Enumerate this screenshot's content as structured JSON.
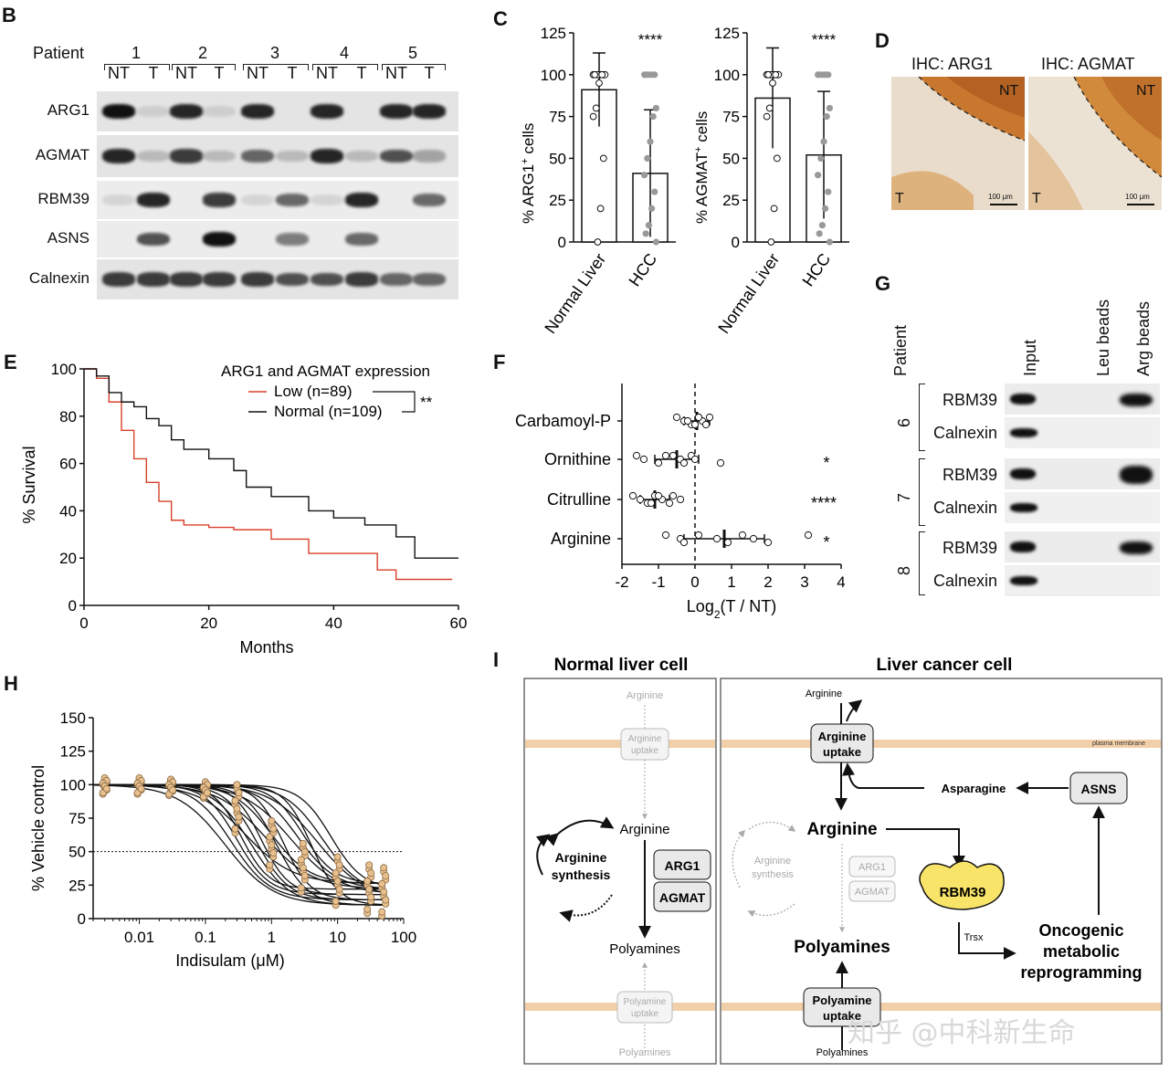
{
  "panels": {
    "B": "B",
    "C": "C",
    "D": "D",
    "E": "E",
    "F": "F",
    "G": "G",
    "H": "H",
    "I": "I"
  },
  "panel_b": {
    "patient_label": "Patient",
    "patients": [
      "1",
      "2",
      "3",
      "4",
      "5"
    ],
    "lanes": [
      "NT",
      "T",
      "NT",
      "T",
      "NT",
      "T",
      "NT",
      "T",
      "NT",
      "T"
    ],
    "rows": [
      "ARG1",
      "AGMAT",
      "RBM39",
      "ASNS",
      "Calnexin"
    ]
  },
  "panel_c": {
    "chart_data": [
      {
        "type": "bar",
        "ylabel": "% ARG1+ cells",
        "ylabel_main": "% ARG1",
        "ylabel_sup": "+",
        "ylabel_tail": " cells",
        "categories": [
          "Normal Liver",
          "HCC"
        ],
        "values": [
          91,
          41
        ],
        "errors": [
          22,
          38
        ],
        "ylim": [
          0,
          125
        ],
        "yticks": [
          "0",
          "25",
          "50",
          "75",
          "100",
          "125"
        ],
        "significance": "****"
      },
      {
        "type": "bar",
        "ylabel": "% AGMAT+ cells",
        "ylabel_main": "% AGMAT",
        "ylabel_sup": "+",
        "ylabel_tail": " cells",
        "categories": [
          "Normal Liver",
          "HCC"
        ],
        "values": [
          86,
          52
        ],
        "errors": [
          30,
          38
        ],
        "ylim": [
          0,
          125
        ],
        "yticks": [
          "0",
          "25",
          "50",
          "75",
          "100",
          "125"
        ],
        "significance": "****"
      }
    ]
  },
  "panel_d": {
    "titles": [
      "IHC: ARG1",
      "IHC: AGMAT"
    ],
    "nt": "NT",
    "t": "T",
    "scale": "100 μm"
  },
  "panel_e": {
    "chart_data": {
      "type": "line",
      "legend_title": "ARG1 and AGMAT expression",
      "series": [
        {
          "name": "Low (n=89)",
          "color": "#d9412b",
          "x": [
            0,
            2,
            4,
            6,
            8,
            10,
            12,
            14,
            16,
            20,
            24,
            30,
            36,
            40,
            47,
            50,
            55,
            58
          ],
          "values": [
            100,
            96,
            86,
            74,
            62,
            52,
            44,
            36,
            34,
            33,
            32,
            28,
            22,
            22,
            15,
            11,
            11,
            11
          ]
        },
        {
          "name": "Normal (n=109)",
          "color": "#111111",
          "x": [
            0,
            2,
            4,
            6,
            8,
            10,
            12,
            14,
            16,
            20,
            24,
            26,
            30,
            36,
            40,
            45,
            50,
            53,
            56,
            59
          ],
          "values": [
            100,
            97,
            90,
            86,
            84,
            79,
            76,
            70,
            66,
            62,
            57,
            50,
            46,
            40,
            37,
            34,
            29,
            20,
            20,
            20
          ]
        }
      ],
      "significance": "**",
      "xlabel": "Months",
      "ylabel": "% Survival",
      "xlim": [
        0,
        60
      ],
      "ylim": [
        0,
        100
      ],
      "xticks": [
        "0",
        "20",
        "40",
        "60"
      ],
      "yticks": [
        "0",
        "20",
        "40",
        "60",
        "80",
        "100"
      ]
    }
  },
  "panel_f": {
    "chart_data": {
      "type": "scatter",
      "categories": [
        "Carbamoyl-P",
        "Ornithine",
        "Citrulline",
        "Arginine"
      ],
      "means": [
        0.05,
        -0.5,
        -1.1,
        0.8
      ],
      "sd": [
        0.35,
        0.6,
        0.4,
        1.1
      ],
      "points": [
        [
          -0.5,
          -0.3,
          -0.1,
          0.1,
          0.2,
          0.3,
          0.4,
          -0.2,
          0.0,
          0.1
        ],
        [
          -1.6,
          -1.4,
          -1.0,
          -0.6,
          -0.4,
          -0.3,
          -0.1,
          0.0,
          0.7,
          -0.8
        ],
        [
          -1.7,
          -1.5,
          -1.3,
          -1.1,
          -0.9,
          -0.7,
          -0.6,
          -0.4,
          -1.2,
          -1.0
        ],
        [
          -0.8,
          -0.4,
          -0.3,
          0.1,
          0.6,
          0.9,
          1.3,
          1.6,
          2.0,
          3.1
        ]
      ],
      "significance": [
        "",
        "*",
        "****",
        "*"
      ],
      "xlabel": "Log2(T / NT)",
      "xlabel_main": "Log",
      "xlabel_sub": "2",
      "xlabel_tail": "(T / NT)",
      "xlim": [
        -2,
        4
      ],
      "xticks": [
        "-2",
        "-1",
        "0",
        "1",
        "2",
        "3",
        "4"
      ]
    }
  },
  "panel_g": {
    "patient_label": "Patient",
    "columns": [
      "Input",
      "Leu beads",
      "Arg beads"
    ],
    "patients": [
      "6",
      "7",
      "8"
    ],
    "rows": [
      "RBM39",
      "Calnexin"
    ]
  },
  "panel_h": {
    "chart_data": {
      "type": "scatter",
      "x": [
        0.003,
        0.01,
        0.03,
        0.1,
        0.3,
        1,
        3,
        10,
        30,
        50
      ],
      "values": [
        99,
        99,
        98,
        96,
        82,
        55,
        38,
        28,
        22,
        20
      ],
      "xlabel": "Indisulam (μM)",
      "ylabel": "% Vehicle control",
      "ylim": [
        0,
        150
      ],
      "yticks": [
        "0",
        "25",
        "50",
        "75",
        "100",
        "125",
        "150"
      ],
      "xticks": [
        "0.01",
        "0.1",
        "1",
        "10",
        "100"
      ],
      "reference_line": 50
    }
  },
  "panel_i": {
    "normal_title": "Normal liver cell",
    "cancer_title": "Liver cancer cell",
    "normal": {
      "arginine_top": "Arginine",
      "uptake": [
        "Arginine",
        "uptake"
      ],
      "arginine": "Arginine",
      "synthesis": [
        "Arginine",
        "synthesis"
      ],
      "arg1": "ARG1",
      "agmat": "AGMAT",
      "polyamines": "Polyamines",
      "poly_uptake": [
        "Polyamine",
        "uptake"
      ],
      "poly_bottom": "Polyamines"
    },
    "cancer": {
      "arginine_top": "Arginine",
      "membrane": "plasma membrane",
      "uptake": [
        "Arginine",
        "uptake"
      ],
      "asparagine": "Asparagine",
      "asns": "ASNS",
      "arginine": "Arginine",
      "synthesis": [
        "Arginine",
        "synthesis"
      ],
      "arg1": "ARG1",
      "agmat": "AGMAT",
      "rbm39": "RBM39",
      "trsx": "Trsx",
      "oncogenic": [
        "Oncogenic",
        "metabolic",
        "reprogramming"
      ],
      "polyamines": "Polyamines",
      "poly_uptake": [
        "Polyamine",
        "uptake"
      ],
      "poly_bottom": "Polyamines"
    }
  },
  "watermark": "知乎 @中科新生命"
}
